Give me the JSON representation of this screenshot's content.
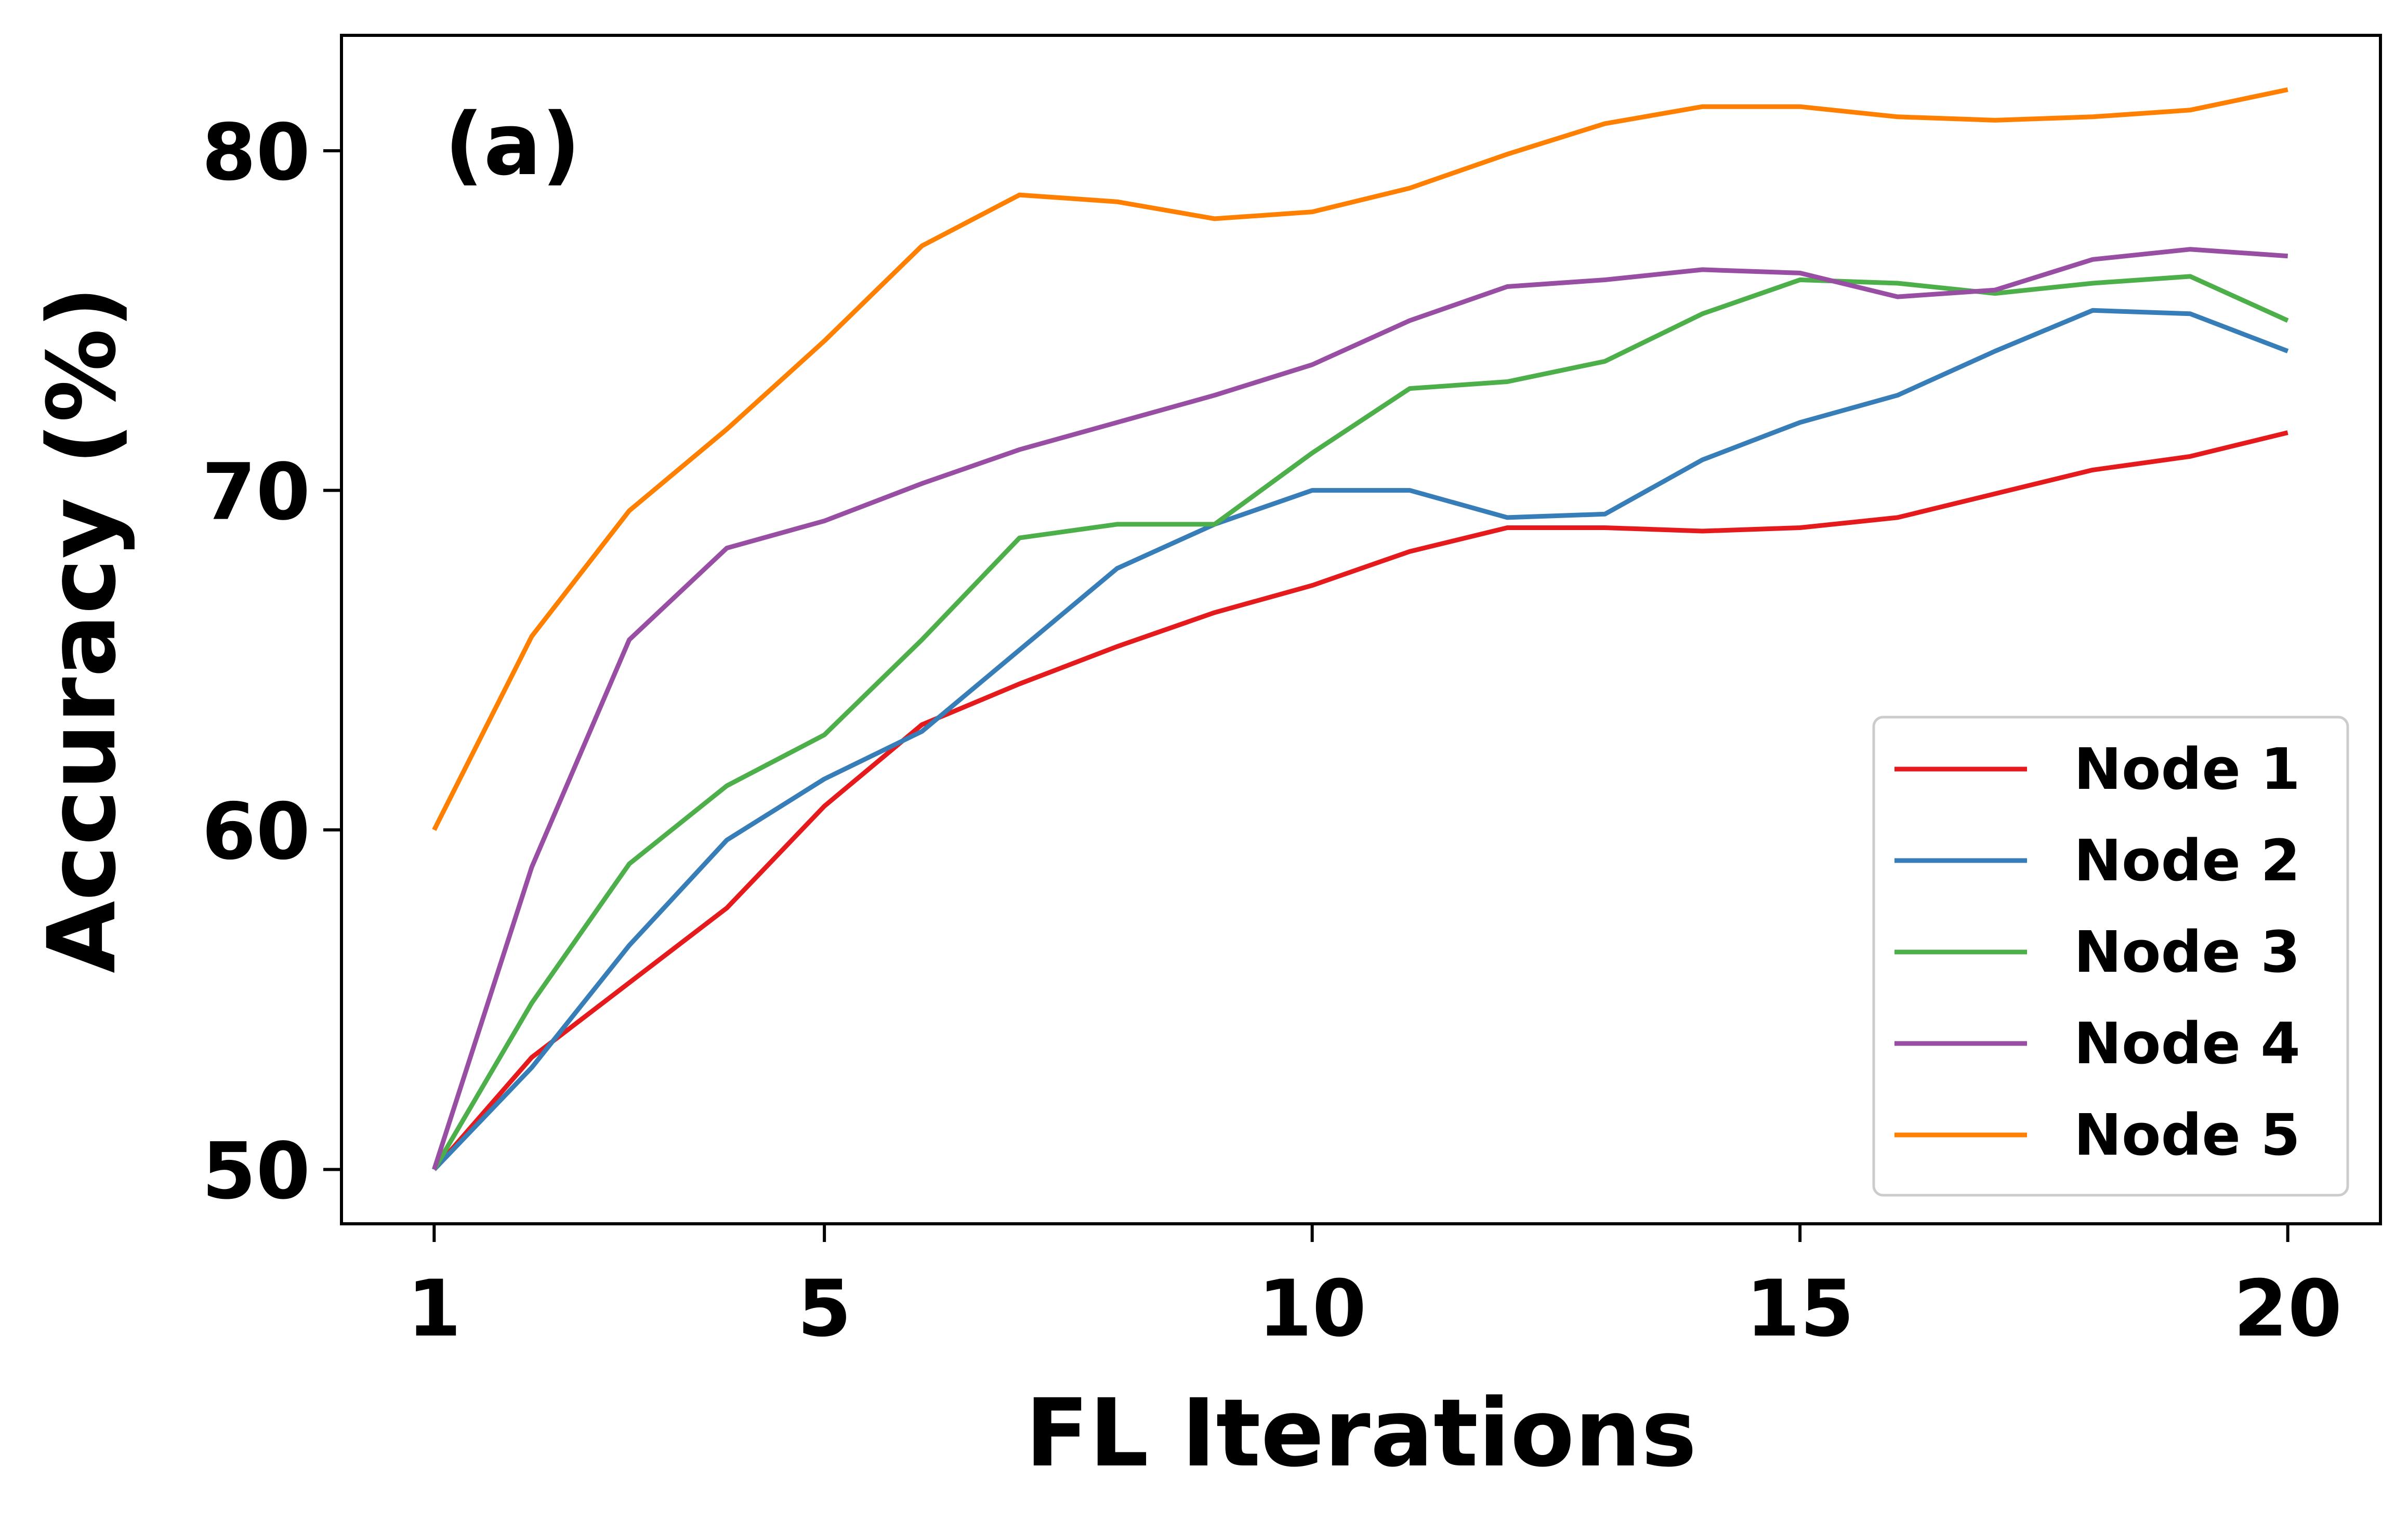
{
  "chart_data": {
    "type": "line",
    "panel_label": "(a)",
    "xlabel": "FL Iterations",
    "ylabel": "Accuracy (%)",
    "x": [
      1,
      2,
      3,
      4,
      5,
      6,
      7,
      8,
      9,
      10,
      11,
      12,
      13,
      14,
      15,
      16,
      17,
      18,
      19,
      20
    ],
    "xticks": [
      1,
      5,
      10,
      15,
      20
    ],
    "yticks": [
      50,
      60,
      70,
      80
    ],
    "xlim": [
      0.05,
      20.95
    ],
    "ylim": [
      48.4,
      83.4
    ],
    "grid": false,
    "legend_position": "lower-right",
    "series": [
      {
        "name": "Node 1",
        "color": "#e41a1c",
        "values": [
          50.0,
          53.3,
          55.5,
          57.7,
          60.7,
          63.1,
          64.3,
          65.4,
          66.4,
          67.2,
          68.2,
          68.9,
          68.9,
          68.8,
          68.9,
          69.2,
          69.9,
          70.6,
          71.0,
          71.7
        ]
      },
      {
        "name": "Node 2",
        "color": "#377eb8",
        "values": [
          50.0,
          53.0,
          56.6,
          59.7,
          61.5,
          62.9,
          65.3,
          67.7,
          69.0,
          70.0,
          70.0,
          69.2,
          69.3,
          70.9,
          72.0,
          72.8,
          74.1,
          75.3,
          75.2,
          74.1
        ]
      },
      {
        "name": "Node 3",
        "color": "#4daf4a",
        "values": [
          50.0,
          54.9,
          59.0,
          61.3,
          62.8,
          65.6,
          68.6,
          69.0,
          69.0,
          71.1,
          73.0,
          73.2,
          73.8,
          75.2,
          76.2,
          76.1,
          75.8,
          76.1,
          76.3,
          75.0
        ]
      },
      {
        "name": "Node 4",
        "color": "#984ea3",
        "values": [
          50.0,
          58.9,
          65.6,
          68.3,
          69.1,
          70.2,
          71.2,
          72.0,
          72.8,
          73.7,
          75.0,
          76.0,
          76.2,
          76.5,
          76.4,
          75.7,
          75.9,
          76.8,
          77.1,
          76.9
        ]
      },
      {
        "name": "Node 5",
        "color": "#ff7f00",
        "values": [
          60.0,
          65.7,
          69.4,
          71.8,
          74.4,
          77.2,
          78.7,
          78.5,
          78.0,
          78.2,
          78.9,
          79.9,
          80.8,
          81.3,
          81.3,
          81.0,
          80.9,
          81.0,
          81.2,
          81.8
        ]
      }
    ]
  }
}
